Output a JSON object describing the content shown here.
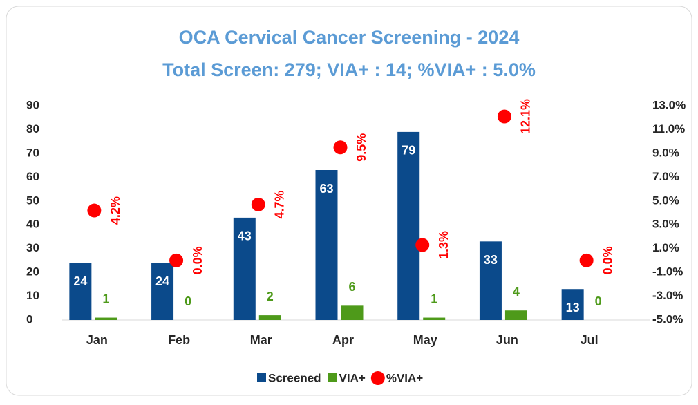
{
  "chart_data": {
    "type": "bar",
    "title": "OCA Cervical Cancer Screening - 2024",
    "subtitle": "Total Screen: 279; VIA+ : 14; %VIA+ : 5.0%",
    "categories": [
      "Jan",
      "Feb",
      "Mar",
      "Apr",
      "May",
      "Jun",
      "Jul"
    ],
    "series": [
      {
        "name": "Screened",
        "color": "#0b4a8b",
        "values": [
          24,
          24,
          43,
          63,
          79,
          33,
          13
        ]
      },
      {
        "name": "VIA+",
        "color": "#4e9a1a",
        "values": [
          1,
          0,
          2,
          6,
          1,
          4,
          0
        ]
      },
      {
        "name": "%VIA+",
        "color": "#ff0000",
        "type": "scatter",
        "axis": "y2",
        "values": [
          4.2,
          0.0,
          4.7,
          9.5,
          1.3,
          12.1,
          0.0
        ],
        "value_labels": [
          "4.2%",
          "0.0%",
          "4.7%",
          "9.5%",
          "1.3%",
          "12.1%",
          "0.0%"
        ]
      }
    ],
    "ylim": [
      0,
      90
    ],
    "yticks": [
      0,
      10,
      20,
      30,
      40,
      50,
      60,
      70,
      80,
      90
    ],
    "y2lim": [
      -5,
      13
    ],
    "y2ticks": [
      {
        "value": -5,
        "label": "-5.0%"
      },
      {
        "value": -3,
        "label": "-3.0%"
      },
      {
        "value": -1,
        "label": "-1.0%"
      },
      {
        "value": 1,
        "label": "1.0%"
      },
      {
        "value": 3,
        "label": "3.0%"
      },
      {
        "value": 5,
        "label": "5.0%"
      },
      {
        "value": 7,
        "label": "7.0%"
      },
      {
        "value": 9,
        "label": "9.0%"
      },
      {
        "value": 11,
        "label": "11.0%"
      },
      {
        "value": 13,
        "label": "13.0%"
      }
    ],
    "legend": "bottom"
  }
}
